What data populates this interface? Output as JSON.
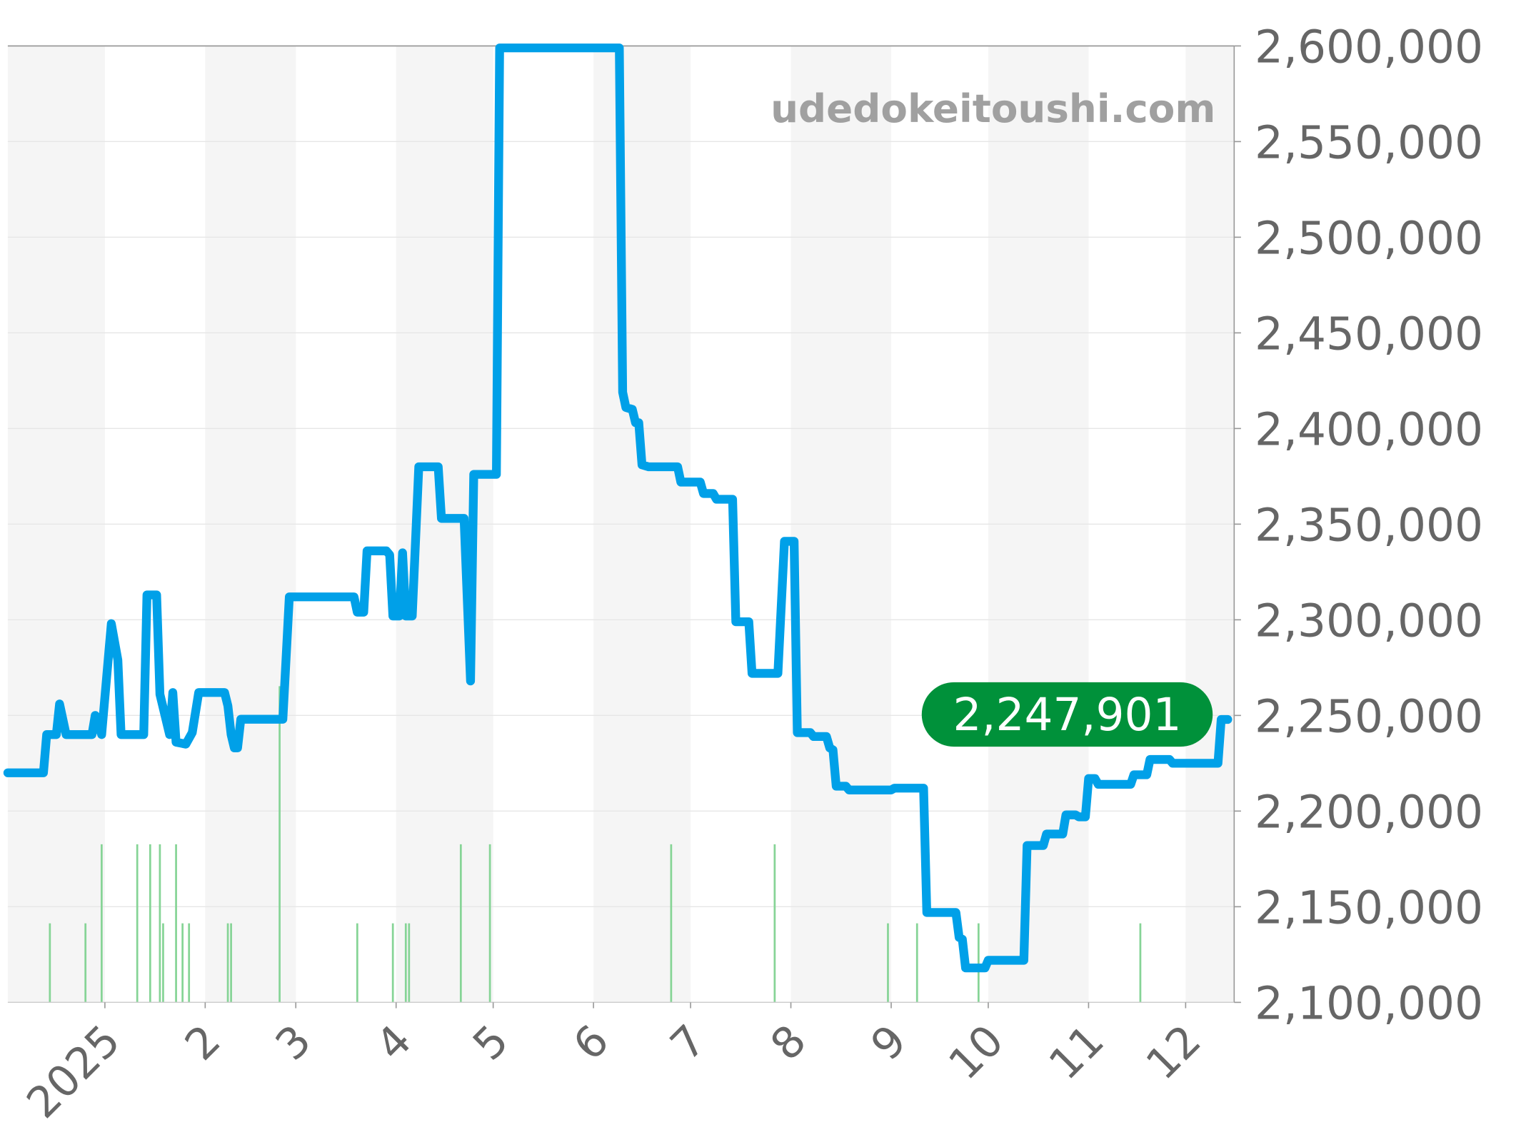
{
  "chart_data": {
    "type": "line",
    "title": "",
    "xlabel": "",
    "ylabel": "",
    "watermark": "udedokeitoushi.com",
    "xlim": [
      "2024-12-02",
      "2025-12-16"
    ],
    "ylim": [
      2100000,
      2600000
    ],
    "y_axis_position": "right",
    "grid": true,
    "alternating_month_bands": true,
    "x_ticks": [
      {
        "date": "2025-01-01",
        "label": "2025"
      },
      {
        "date": "2025-02-01",
        "label": "2"
      },
      {
        "date": "2025-03-01",
        "label": "3"
      },
      {
        "date": "2025-04-01",
        "label": "4"
      },
      {
        "date": "2025-05-01",
        "label": "5"
      },
      {
        "date": "2025-06-01",
        "label": "6"
      },
      {
        "date": "2025-07-01",
        "label": "7"
      },
      {
        "date": "2025-08-01",
        "label": "8"
      },
      {
        "date": "2025-09-01",
        "label": "9"
      },
      {
        "date": "2025-10-01",
        "label": "10"
      },
      {
        "date": "2025-11-01",
        "label": "11"
      },
      {
        "date": "2025-12-01",
        "label": "12"
      }
    ],
    "y_ticks": [
      {
        "value": 2600000,
        "label": "2,600,000"
      },
      {
        "value": 2550000,
        "label": "2,550,000"
      },
      {
        "value": 2500000,
        "label": "2,500,000"
      },
      {
        "value": 2450000,
        "label": "2,450,000"
      },
      {
        "value": 2400000,
        "label": "2,400,000"
      },
      {
        "value": 2350000,
        "label": "2,350,000"
      },
      {
        "value": 2300000,
        "label": "2,300,000"
      },
      {
        "value": 2250000,
        "label": "2,250,000"
      },
      {
        "value": 2200000,
        "label": "2,200,000"
      },
      {
        "value": 2150000,
        "label": "2,150,000"
      },
      {
        "value": 2100000,
        "label": "2,100,000"
      }
    ],
    "last_value": {
      "value": 2247901,
      "label": "2,247,901"
    },
    "colors": {
      "line": "#00a0e8",
      "volume": "#86d496",
      "badge": "#00913a",
      "band": "#f5f5f5",
      "grid": "#e6e6e6",
      "text": "#666666"
    },
    "series": [
      {
        "type": "line",
        "points": [
          [
            "2024-12-02",
            2220000
          ],
          [
            "2024-12-13",
            2220000
          ],
          [
            "2024-12-14",
            2240000
          ],
          [
            "2024-12-17",
            2240000
          ],
          [
            "2024-12-18",
            2256000
          ],
          [
            "2024-12-20",
            2240000
          ],
          [
            "2024-12-28",
            2240000
          ],
          [
            "2024-12-29",
            2250000
          ],
          [
            "2024-12-31",
            2240000
          ],
          [
            "2025-01-03",
            2298000
          ],
          [
            "2025-01-05",
            2279000
          ],
          [
            "2025-01-06",
            2240000
          ],
          [
            "2025-01-13",
            2240000
          ],
          [
            "2025-01-14",
            2313000
          ],
          [
            "2025-01-17",
            2313000
          ],
          [
            "2025-01-18",
            2261000
          ],
          [
            "2025-01-21",
            2240000
          ],
          [
            "2025-01-22",
            2262000
          ],
          [
            "2025-01-23",
            2236000
          ],
          [
            "2025-01-26",
            2235000
          ],
          [
            "2025-01-28",
            2241000
          ],
          [
            "2025-01-30",
            2262000
          ],
          [
            "2025-02-07",
            2262000
          ],
          [
            "2025-02-08",
            2255000
          ],
          [
            "2025-02-09",
            2240000
          ],
          [
            "2025-02-10",
            2233000
          ],
          [
            "2025-02-11",
            2233000
          ],
          [
            "2025-02-12",
            2248000
          ],
          [
            "2025-02-25",
            2248000
          ],
          [
            "2025-02-27",
            2312000
          ],
          [
            "2025-03-19",
            2312000
          ],
          [
            "2025-03-20",
            2304000
          ],
          [
            "2025-03-22",
            2304000
          ],
          [
            "2025-03-23",
            2336000
          ],
          [
            "2025-03-29",
            2336000
          ],
          [
            "2025-03-30",
            2334000
          ],
          [
            "2025-03-31",
            2302000
          ],
          [
            "2025-04-02",
            2302000
          ],
          [
            "2025-04-03",
            2335000
          ],
          [
            "2025-04-04",
            2302000
          ],
          [
            "2025-04-06",
            2302000
          ],
          [
            "2025-04-08",
            2380000
          ],
          [
            "2025-04-14",
            2380000
          ],
          [
            "2025-04-15",
            2353000
          ],
          [
            "2025-04-22",
            2353000
          ],
          [
            "2025-04-24",
            2268000
          ],
          [
            "2025-04-25",
            2376000
          ],
          [
            "2025-05-02",
            2376000
          ],
          [
            "2025-05-03",
            2599000
          ],
          [
            "2025-06-09",
            2599000
          ],
          [
            "2025-06-10",
            2419000
          ],
          [
            "2025-06-11",
            2411000
          ],
          [
            "2025-06-13",
            2410000
          ],
          [
            "2025-06-14",
            2403000
          ],
          [
            "2025-06-15",
            2403000
          ],
          [
            "2025-06-16",
            2381000
          ],
          [
            "2025-06-18",
            2380000
          ],
          [
            "2025-06-27",
            2380000
          ],
          [
            "2025-06-28",
            2372000
          ],
          [
            "2025-07-04",
            2372000
          ],
          [
            "2025-07-05",
            2366000
          ],
          [
            "2025-07-08",
            2366000
          ],
          [
            "2025-07-09",
            2363000
          ],
          [
            "2025-07-14",
            2363000
          ],
          [
            "2025-07-15",
            2299000
          ],
          [
            "2025-07-19",
            2299000
          ],
          [
            "2025-07-20",
            2272000
          ],
          [
            "2025-07-28",
            2272000
          ],
          [
            "2025-07-30",
            2341000
          ],
          [
            "2025-08-02",
            2341000
          ],
          [
            "2025-08-03",
            2241000
          ],
          [
            "2025-08-07",
            2241000
          ],
          [
            "2025-08-08",
            2239000
          ],
          [
            "2025-08-12",
            2239000
          ],
          [
            "2025-08-13",
            2233000
          ],
          [
            "2025-08-14",
            2232000
          ],
          [
            "2025-08-15",
            2213000
          ],
          [
            "2025-08-18",
            2213000
          ],
          [
            "2025-08-19",
            2211000
          ],
          [
            "2025-09-01",
            2211000
          ],
          [
            "2025-09-02",
            2212000
          ],
          [
            "2025-09-11",
            2212000
          ],
          [
            "2025-09-12",
            2147000
          ],
          [
            "2025-09-21",
            2147000
          ],
          [
            "2025-09-22",
            2134000
          ],
          [
            "2025-09-23",
            2133000
          ],
          [
            "2025-09-24",
            2118000
          ],
          [
            "2025-09-30",
            2118000
          ],
          [
            "2025-10-01",
            2122000
          ],
          [
            "2025-10-12",
            2122000
          ],
          [
            "2025-10-13",
            2182000
          ],
          [
            "2025-10-18",
            2182000
          ],
          [
            "2025-10-19",
            2188000
          ],
          [
            "2025-10-24",
            2188000
          ],
          [
            "2025-10-25",
            2198000
          ],
          [
            "2025-10-28",
            2198000
          ],
          [
            "2025-10-29",
            2197000
          ],
          [
            "2025-10-31",
            2197000
          ],
          [
            "2025-11-01",
            2217000
          ],
          [
            "2025-11-03",
            2217000
          ],
          [
            "2025-11-04",
            2214000
          ],
          [
            "2025-11-14",
            2214000
          ],
          [
            "2025-11-15",
            2219000
          ],
          [
            "2025-11-19",
            2219000
          ],
          [
            "2025-11-20",
            2227000
          ],
          [
            "2025-11-26",
            2227000
          ],
          [
            "2025-11-27",
            2225000
          ],
          [
            "2025-12-11",
            2225000
          ],
          [
            "2025-12-12",
            2247901
          ],
          [
            "2025-12-14",
            2247901
          ]
        ]
      },
      {
        "type": "bar",
        "points": [
          [
            "2024-12-15",
            1
          ],
          [
            "2024-12-26",
            1
          ],
          [
            "2024-12-31",
            2
          ],
          [
            "2025-01-11",
            2
          ],
          [
            "2025-01-15",
            2
          ],
          [
            "2025-01-18",
            2
          ],
          [
            "2025-01-19",
            1
          ],
          [
            "2025-01-23",
            2
          ],
          [
            "2025-01-25",
            1
          ],
          [
            "2025-01-27",
            1
          ],
          [
            "2025-02-08",
            1
          ],
          [
            "2025-02-09",
            1
          ],
          [
            "2025-02-24",
            4
          ],
          [
            "2025-03-20",
            1
          ],
          [
            "2025-03-31",
            1
          ],
          [
            "2025-04-04",
            1
          ],
          [
            "2025-04-05",
            1
          ],
          [
            "2025-04-21",
            2
          ],
          [
            "2025-04-30",
            2
          ],
          [
            "2025-06-25",
            2
          ],
          [
            "2025-07-27",
            2
          ],
          [
            "2025-08-31",
            1
          ],
          [
            "2025-09-09",
            1
          ],
          [
            "2025-09-28",
            1
          ],
          [
            "2025-11-17",
            1
          ]
        ]
      }
    ]
  }
}
